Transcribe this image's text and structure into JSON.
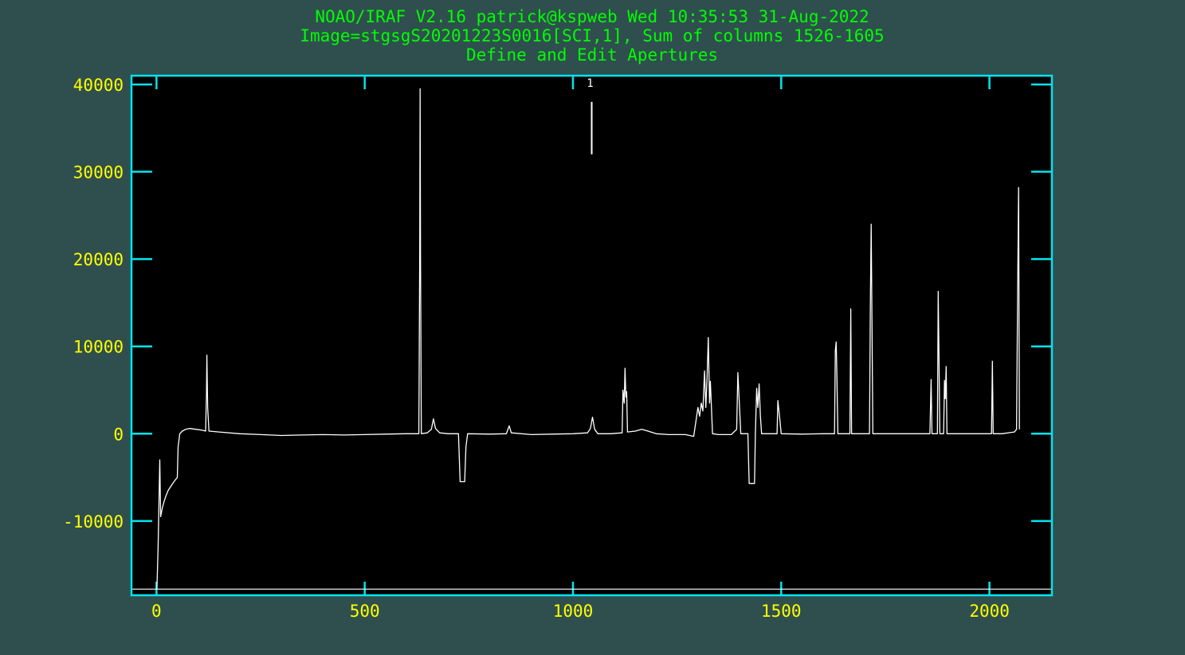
{
  "window": {
    "background_color": "#2f4f4f"
  },
  "header": {
    "line1": "NOAO/IRAF V2.16 patrick@kspweb Wed 10:35:53 31-Aug-2022",
    "line2": "Image=stgsgS20201223S0016[SCI,1], Sum of columns 1526-1605",
    "line3": "Define and Edit Apertures",
    "color": "#00ff00"
  },
  "colors": {
    "plot_background": "#000000",
    "axes_frame": "#00e5ee",
    "tick_labels": "#ffff00",
    "data_line": "#ffffff"
  },
  "chart_data": {
    "type": "line",
    "title": "Define and Edit Apertures",
    "xlim": [
      -60,
      2150
    ],
    "ylim": [
      -18500,
      41000
    ],
    "x_ticks": [
      0,
      500,
      1000,
      1500,
      2000
    ],
    "x_tick_labels": [
      "0",
      "500",
      "1000",
      "1500",
      "2000"
    ],
    "y_ticks": [
      -10000,
      0,
      10000,
      20000,
      30000,
      40000
    ],
    "y_tick_labels": [
      "-10000",
      "0",
      "10000",
      "20000",
      "30000",
      "40000"
    ],
    "grid": false,
    "aperture": {
      "label": "1",
      "center": 1045,
      "mark_y_range": [
        32000,
        38000
      ]
    },
    "lower_limit_line": -17800,
    "series": [
      {
        "points": [
          [
            1,
            -17800
          ],
          [
            4,
            -13000
          ],
          [
            8,
            -3000
          ],
          [
            10,
            -9500
          ],
          [
            14,
            -8500
          ],
          [
            18,
            -7800
          ],
          [
            22,
            -7200
          ],
          [
            28,
            -6500
          ],
          [
            35,
            -6000
          ],
          [
            42,
            -5500
          ],
          [
            50,
            -5000
          ],
          [
            52,
            -1500
          ],
          [
            56,
            0
          ],
          [
            62,
            300
          ],
          [
            70,
            500
          ],
          [
            80,
            600
          ],
          [
            95,
            500
          ],
          [
            110,
            400
          ],
          [
            118,
            300
          ],
          [
            120,
            4500
          ],
          [
            121,
            9000
          ],
          [
            123,
            3000
          ],
          [
            126,
            300
          ],
          [
            150,
            200
          ],
          [
            200,
            0
          ],
          [
            250,
            -100
          ],
          [
            300,
            -200
          ],
          [
            350,
            -150
          ],
          [
            400,
            -100
          ],
          [
            450,
            -150
          ],
          [
            500,
            -100
          ],
          [
            550,
            -50
          ],
          [
            600,
            0
          ],
          [
            630,
            0
          ],
          [
            632,
            21000
          ],
          [
            633,
            39500
          ],
          [
            634,
            20000
          ],
          [
            636,
            0
          ],
          [
            650,
            100
          ],
          [
            660,
            500
          ],
          [
            665,
            1700
          ],
          [
            670,
            600
          ],
          [
            680,
            100
          ],
          [
            700,
            0
          ],
          [
            725,
            0
          ],
          [
            729,
            -5500
          ],
          [
            740,
            -5500
          ],
          [
            743,
            -1500
          ],
          [
            747,
            0
          ],
          [
            800,
            -50
          ],
          [
            840,
            0
          ],
          [
            847,
            900
          ],
          [
            852,
            100
          ],
          [
            900,
            -100
          ],
          [
            950,
            -50
          ],
          [
            1000,
            0
          ],
          [
            1035,
            100
          ],
          [
            1042,
            600
          ],
          [
            1047,
            1900
          ],
          [
            1052,
            500
          ],
          [
            1060,
            0
          ],
          [
            1090,
            0
          ],
          [
            1118,
            100
          ],
          [
            1120,
            5000
          ],
          [
            1123,
            3500
          ],
          [
            1125,
            7500
          ],
          [
            1127,
            4200
          ],
          [
            1129,
            4800
          ],
          [
            1131,
            200
          ],
          [
            1150,
            300
          ],
          [
            1165,
            500
          ],
          [
            1180,
            300
          ],
          [
            1200,
            0
          ],
          [
            1230,
            -100
          ],
          [
            1270,
            -100
          ],
          [
            1290,
            -300
          ],
          [
            1300,
            3000
          ],
          [
            1304,
            2000
          ],
          [
            1308,
            3500
          ],
          [
            1312,
            2600
          ],
          [
            1316,
            7200
          ],
          [
            1319,
            3000
          ],
          [
            1322,
            6500
          ],
          [
            1325,
            11000
          ],
          [
            1328,
            3500
          ],
          [
            1330,
            6000
          ],
          [
            1335,
            0
          ],
          [
            1350,
            -100
          ],
          [
            1380,
            -100
          ],
          [
            1393,
            500
          ],
          [
            1396,
            7000
          ],
          [
            1400,
            3000
          ],
          [
            1403,
            0
          ],
          [
            1420,
            0
          ],
          [
            1423,
            -5700
          ],
          [
            1436,
            -5700
          ],
          [
            1438,
            0
          ],
          [
            1441,
            5200
          ],
          [
            1444,
            3000
          ],
          [
            1447,
            5700
          ],
          [
            1450,
            2000
          ],
          [
            1453,
            0
          ],
          [
            1470,
            0
          ],
          [
            1490,
            0
          ],
          [
            1492,
            3800
          ],
          [
            1496,
            2000
          ],
          [
            1500,
            0
          ],
          [
            1550,
            -50
          ],
          [
            1600,
            0
          ],
          [
            1628,
            0
          ],
          [
            1630,
            9500
          ],
          [
            1632,
            10500
          ],
          [
            1634,
            6000
          ],
          [
            1636,
            0
          ],
          [
            1665,
            0
          ],
          [
            1667,
            14300
          ],
          [
            1669,
            0
          ],
          [
            1700,
            0
          ],
          [
            1712,
            0
          ],
          [
            1714,
            14200
          ],
          [
            1716,
            24000
          ],
          [
            1718,
            12800
          ],
          [
            1720,
            0
          ],
          [
            1780,
            0
          ],
          [
            1857,
            0
          ],
          [
            1860,
            6200
          ],
          [
            1862,
            0
          ],
          [
            1875,
            0
          ],
          [
            1877,
            16300
          ],
          [
            1879,
            8000
          ],
          [
            1881,
            0
          ],
          [
            1890,
            0
          ],
          [
            1892,
            6100
          ],
          [
            1894,
            4000
          ],
          [
            1896,
            7700
          ],
          [
            1898,
            0
          ],
          [
            1950,
            0
          ],
          [
            2005,
            0
          ],
          [
            2007,
            8300
          ],
          [
            2009,
            0
          ],
          [
            2030,
            0
          ],
          [
            2060,
            200
          ],
          [
            2065,
            500
          ],
          [
            2068,
            17500
          ],
          [
            2070,
            28200
          ],
          [
            2072,
            500
          ]
        ]
      }
    ]
  }
}
